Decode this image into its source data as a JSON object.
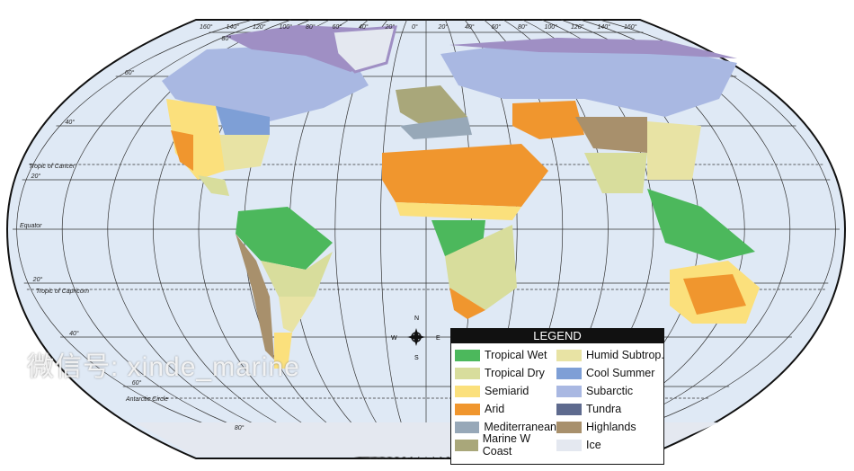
{
  "map": {
    "longitude_labels": [
      "160°",
      "140°",
      "120°",
      "100°",
      "80°",
      "60°",
      "40°",
      "20°",
      "0°",
      "20°",
      "40°",
      "60°",
      "80°",
      "100°",
      "120°",
      "140°",
      "160°"
    ],
    "latitude_labels": [
      {
        "lat": 80,
        "text": "80°"
      },
      {
        "lat": 60,
        "text": "60°"
      },
      {
        "lat": 40,
        "text": "40°"
      },
      {
        "lat": 20,
        "text": "20°"
      },
      {
        "lat": -20,
        "text": "20°"
      },
      {
        "lat": -40,
        "text": "40°"
      },
      {
        "lat": -60,
        "text": "60°"
      },
      {
        "lat": -80,
        "text": "80°"
      }
    ],
    "lines": {
      "cancer": "Tropic of Cancer",
      "equator": "Equator",
      "capricorn": "Tropic of Capricorn",
      "antarctic": "Antarctic Circle"
    },
    "compass": {
      "n": "N",
      "s": "S",
      "e": "E",
      "w": "W"
    },
    "ocean_color": "#dfe9f5"
  },
  "legend": {
    "title": "LEGEND",
    "items": [
      {
        "label": "Tropical Wet",
        "color": "#4cb85c"
      },
      {
        "label": "Humid Subtrop.",
        "color": "#e8e3a4"
      },
      {
        "label": "Tropical Dry",
        "color": "#d8dd9c"
      },
      {
        "label": "Cool Summer",
        "color": "#7e9fd6"
      },
      {
        "label": "Semiarid",
        "color": "#fbe07c"
      },
      {
        "label": "Subarctic",
        "color": "#a9b8e2"
      },
      {
        "label": "Arid",
        "color": "#f0962e"
      },
      {
        "label": "Tundra",
        "color": "#5e6a8e"
      },
      {
        "label": "Mediterranean",
        "color": "#97a8b8"
      },
      {
        "label": "Highlands",
        "color": "#a8906c"
      },
      {
        "label": "Marine W Coast",
        "color": "#a9a77a"
      },
      {
        "label": "Ice",
        "color": "#e4e8f0"
      }
    ]
  },
  "watermark": "微信号: xinde_marine"
}
